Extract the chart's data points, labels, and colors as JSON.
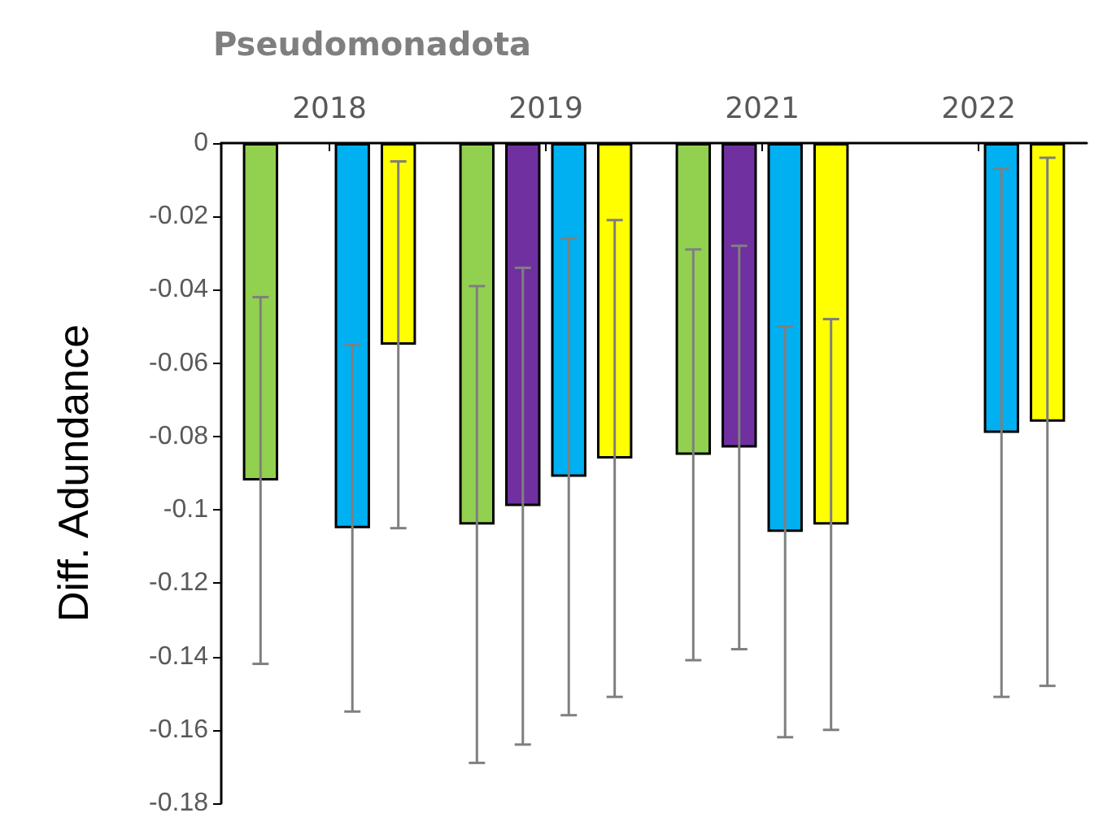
{
  "chart_data": {
    "type": "bar",
    "title": "Pseudomonadota",
    "ylabel": "Diff. Adundance",
    "categories": [
      "2018",
      "2019",
      "2021",
      "2022"
    ],
    "series": [
      {
        "color": "#92d050",
        "values": [
          -0.092,
          -0.104,
          -0.085,
          null
        ],
        "errors": [
          0.05,
          0.065,
          0.056,
          null
        ]
      },
      {
        "color": "#7030a0",
        "values": [
          null,
          -0.099,
          -0.083,
          null
        ],
        "errors": [
          null,
          0.065,
          0.055,
          null
        ]
      },
      {
        "color": "#00b0f0",
        "values": [
          -0.105,
          -0.091,
          -0.106,
          -0.079
        ],
        "errors": [
          0.05,
          0.065,
          0.056,
          0.072
        ]
      },
      {
        "color": "#ffff00",
        "values": [
          -0.055,
          -0.086,
          -0.104,
          -0.076
        ],
        "errors": [
          0.05,
          0.065,
          0.056,
          0.072
        ]
      }
    ],
    "ylim": [
      -0.18,
      0
    ],
    "yticks": [
      0,
      -0.02,
      -0.04,
      -0.06,
      -0.08,
      -0.1,
      -0.12,
      -0.14,
      -0.16,
      -0.18
    ],
    "grid": false
  }
}
